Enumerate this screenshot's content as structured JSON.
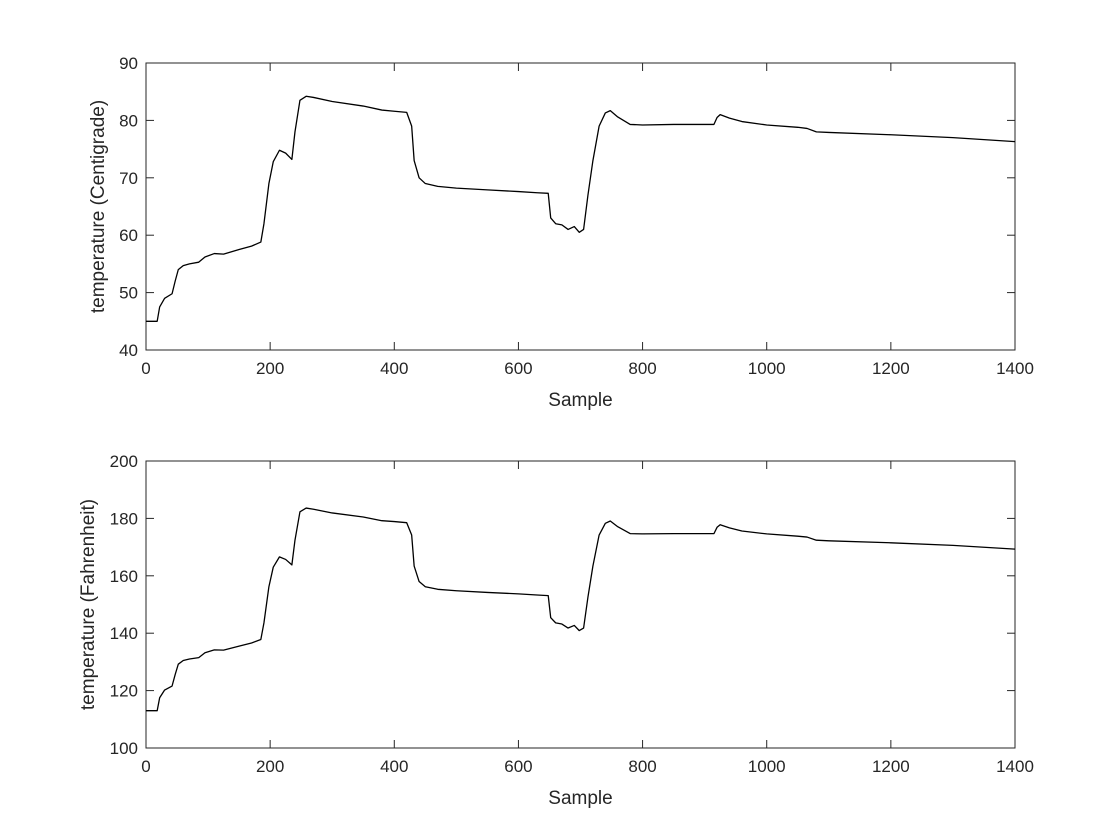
{
  "chart_data": [
    {
      "type": "line",
      "xlabel": "Sample",
      "ylabel": "temperature (Centigrade)",
      "xlim": [
        0,
        1400
      ],
      "ylim": [
        40,
        90
      ],
      "xticks": [
        "0",
        "200",
        "400",
        "600",
        "800",
        "1000",
        "1200",
        "1400"
      ],
      "yticks": [
        "40",
        "50",
        "60",
        "70",
        "80",
        "90"
      ],
      "grid": false,
      "line_color": "#000000",
      "series": [
        {
          "x": [
            0,
            18,
            22,
            30,
            42,
            47,
            52,
            60,
            70,
            85,
            95,
            110,
            125,
            150,
            170,
            185,
            190,
            198,
            205,
            215,
            225,
            235,
            240,
            248,
            258,
            270,
            300,
            350,
            380,
            400,
            420,
            428,
            432,
            440,
            450,
            470,
            500,
            550,
            600,
            630,
            648,
            652,
            660,
            670,
            680,
            690,
            698,
            705,
            712,
            720,
            730,
            740,
            748,
            760,
            780,
            800,
            850,
            900,
            915,
            920,
            925,
            940,
            960,
            1000,
            1050,
            1065,
            1080,
            1100,
            1200,
            1300,
            1400
          ],
          "y": [
            45.0,
            45.0,
            47.5,
            49.0,
            49.8,
            52.0,
            54.0,
            54.7,
            55.0,
            55.3,
            56.2,
            56.8,
            56.7,
            57.5,
            58.1,
            58.8,
            62.0,
            69.0,
            72.8,
            74.8,
            74.3,
            73.2,
            78.0,
            83.5,
            84.2,
            84.0,
            83.3,
            82.5,
            81.8,
            81.6,
            81.4,
            79.0,
            73.0,
            70.0,
            69.0,
            68.5,
            68.2,
            67.9,
            67.6,
            67.4,
            67.3,
            63.0,
            62.0,
            61.8,
            61.0,
            61.5,
            60.5,
            61.0,
            67.0,
            73.0,
            79.0,
            81.3,
            81.7,
            80.6,
            79.3,
            79.2,
            79.3,
            79.3,
            79.3,
            80.5,
            81.0,
            80.4,
            79.8,
            79.2,
            78.8,
            78.6,
            78.0,
            77.9,
            77.5,
            77.0,
            76.3
          ]
        }
      ]
    },
    {
      "type": "line",
      "xlabel": "Sample",
      "ylabel": "temperature (Fahrenheit)",
      "xlim": [
        0,
        1400
      ],
      "ylim": [
        100,
        200
      ],
      "xticks": [
        "0",
        "200",
        "400",
        "600",
        "800",
        "1000",
        "1200",
        "1400"
      ],
      "yticks": [
        "100",
        "120",
        "140",
        "160",
        "180",
        "200"
      ],
      "grid": false,
      "line_color": "#000000",
      "series": [
        {
          "x": [
            0,
            18,
            22,
            30,
            42,
            47,
            52,
            60,
            70,
            85,
            95,
            110,
            125,
            150,
            170,
            185,
            190,
            198,
            205,
            215,
            225,
            235,
            240,
            248,
            258,
            270,
            300,
            350,
            380,
            400,
            420,
            428,
            432,
            440,
            450,
            470,
            500,
            550,
            600,
            630,
            648,
            652,
            660,
            670,
            680,
            690,
            698,
            705,
            712,
            720,
            730,
            740,
            748,
            760,
            780,
            800,
            850,
            900,
            915,
            920,
            925,
            940,
            960,
            1000,
            1050,
            1065,
            1080,
            1100,
            1200,
            1300,
            1400
          ],
          "y": [
            113.0,
            113.0,
            117.5,
            120.2,
            121.6,
            125.6,
            129.2,
            130.5,
            131.0,
            131.5,
            133.2,
            134.2,
            134.1,
            135.5,
            136.6,
            137.8,
            143.6,
            156.2,
            163.0,
            166.6,
            165.7,
            163.8,
            172.4,
            182.3,
            183.6,
            183.2,
            181.9,
            180.5,
            179.2,
            178.9,
            178.5,
            174.2,
            163.4,
            158.0,
            156.2,
            155.3,
            154.8,
            154.2,
            153.7,
            153.3,
            153.1,
            145.4,
            143.6,
            143.2,
            141.8,
            142.7,
            140.9,
            141.8,
            152.6,
            163.4,
            174.2,
            178.3,
            179.1,
            177.1,
            174.7,
            174.6,
            174.7,
            174.7,
            174.7,
            176.9,
            177.8,
            176.7,
            175.6,
            174.6,
            173.8,
            173.5,
            172.4,
            172.2,
            171.5,
            170.6,
            169.3
          ]
        }
      ]
    }
  ]
}
